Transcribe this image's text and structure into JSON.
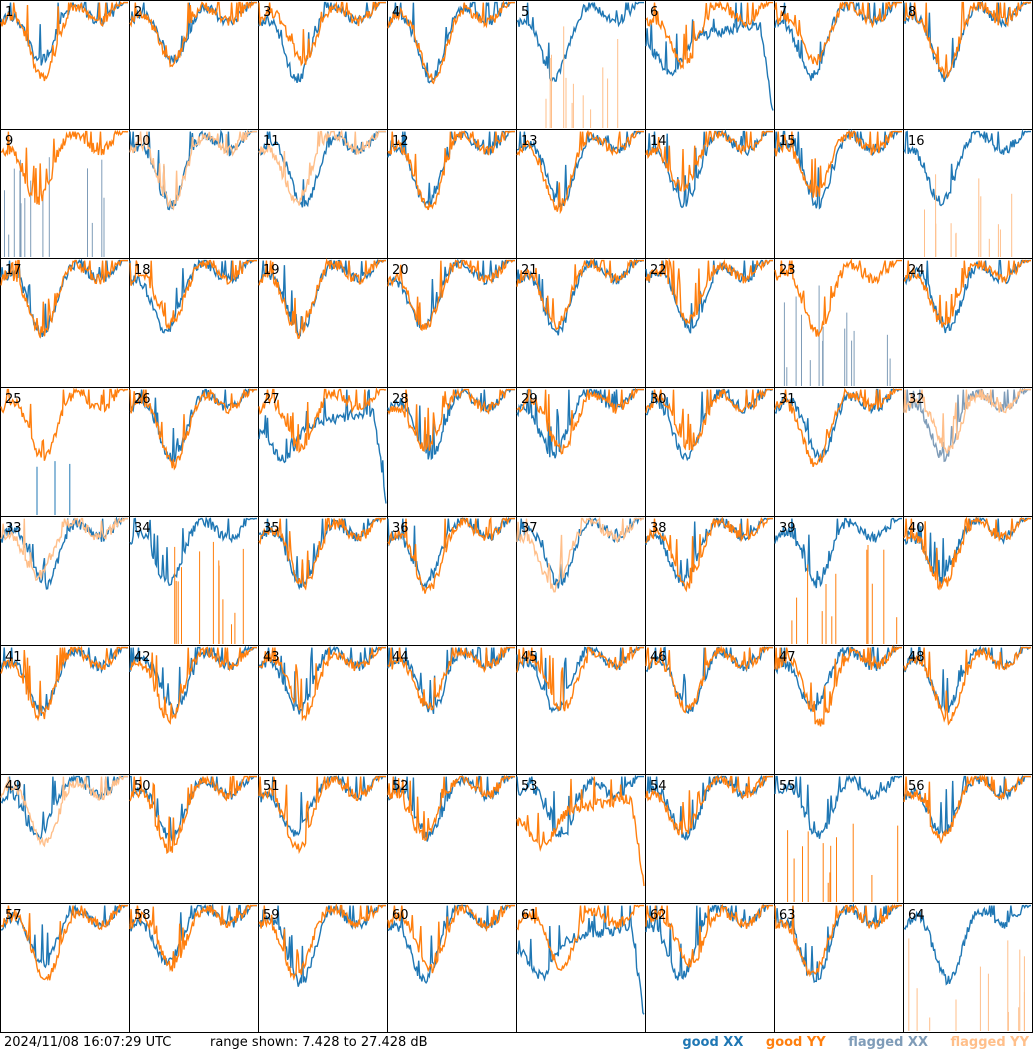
{
  "chart_data": {
    "type": "line",
    "layout": "8x8 grid of small-multiple spectra",
    "panel_labels": [
      "1",
      "2",
      "3",
      "4",
      "5",
      "6",
      "7",
      "8",
      "9",
      "10",
      "11",
      "12",
      "13",
      "14",
      "15",
      "16",
      "17",
      "18",
      "19",
      "20",
      "21",
      "22",
      "23",
      "24",
      "25",
      "26",
      "27",
      "28",
      "29",
      "30",
      "31",
      "32",
      "33",
      "34",
      "35",
      "36",
      "37",
      "38",
      "39",
      "40",
      "41",
      "42",
      "43",
      "44",
      "45",
      "46",
      "47",
      "48",
      "49",
      "50",
      "51",
      "52",
      "53",
      "54",
      "55",
      "56",
      "57",
      "58",
      "59",
      "60",
      "61",
      "62",
      "63",
      "64"
    ],
    "ylim": [
      7.428,
      27.428
    ],
    "y_unit": "dB",
    "grid": false,
    "legend_position": "bottom-right",
    "series_colors": {
      "good_xx": "#1f77b4",
      "good_yy": "#ff7f0e",
      "flagged_xx": "#7f9cb8",
      "flagged_yy": "#ffbf8a"
    },
    "panel_states": {
      "flagged_xx": [
        9,
        23,
        32
      ],
      "flagged_yy": [
        5,
        10,
        11,
        16,
        32,
        33,
        37,
        49,
        64
      ],
      "flagged_both_partial": [
        48
      ],
      "yy_spiky": [
        34,
        39,
        55
      ],
      "xx_spiky": [
        25
      ],
      "xx_dropout": [
        6,
        27,
        61
      ],
      "yy_dropout": [
        53
      ]
    },
    "note_text": ""
  },
  "footer": {
    "timestamp": "2024/11/08 16:07:29 UTC",
    "range_text": "range shown: 7.428 to 27.428 dB",
    "legend": {
      "good_xx": "good XX",
      "good_yy": "good YY",
      "flagged_xx": "flagged XX",
      "flagged_yy": "flagged YY"
    }
  }
}
